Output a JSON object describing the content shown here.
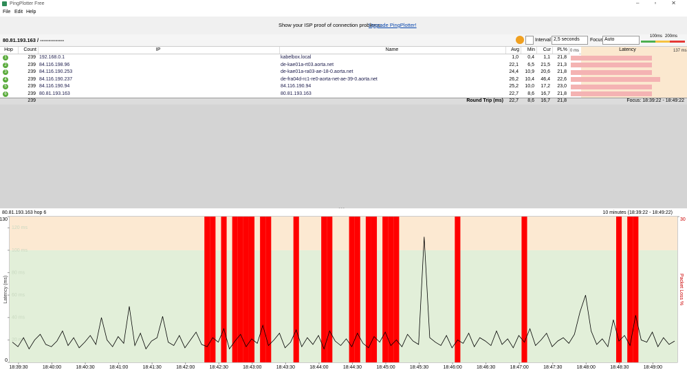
{
  "window": {
    "title": "PingPlotter Free"
  },
  "menu": [
    "File",
    "Edit",
    "Help"
  ],
  "banner": {
    "text": "Show your ISP proof of connection problems.",
    "link": "Upgrade PingPlotter!"
  },
  "toolbar": {
    "target": "80.81.193.163 / --------------",
    "interval_label": "Interval",
    "interval": "2,5 seconds",
    "focus_label": "Focus",
    "focus": "Auto",
    "scale": [
      "100ms",
      "200ms"
    ]
  },
  "table": {
    "columns": [
      "Hop",
      "Count",
      "IP",
      "Name",
      "Avg",
      "Min",
      "Cur",
      "PL%",
      "Latency"
    ],
    "latency_scale": [
      "0 ms",
      "137 ms"
    ],
    "rows": [
      [
        "1",
        "239",
        "192.168.0.1",
        "kabelbox.local",
        "1,0",
        "0,4",
        "1,1",
        "21,8"
      ],
      [
        "2",
        "239",
        "84.116.198.96",
        "de-kae01a-rt03.aorta.net",
        "22,1",
        "6,5",
        "21,5",
        "21,3"
      ],
      [
        "3",
        "239",
        "84.116.190.253",
        "de-kae01a-ra03-ae-18-0.aorta.net",
        "24,4",
        "10,9",
        "20,6",
        "21,8"
      ],
      [
        "4",
        "239",
        "84.116.190.237",
        "de-fra04d-rc1-re0-aorta-net-ae-39-0.aorta.net",
        "26,2",
        "10,4",
        "46,4",
        "22,6"
      ],
      [
        "5",
        "239",
        "84.116.190.94",
        "84.116.190.94",
        "25,2",
        "10,0",
        "17,2",
        "23,0"
      ],
      [
        "6",
        "239",
        "80.81.193.163",
        "80.81.193.163",
        "22,7",
        "8,6",
        "16,7",
        "21,8"
      ]
    ],
    "summary": {
      "count": "239",
      "label": "Round Trip (ms)",
      "avg": "22,7",
      "min": "8,6",
      "cur": "16,7",
      "pl": "21,8",
      "focus": "Focus: 18:39:22 - 18:49:22"
    }
  },
  "chart_data": {
    "type": "line",
    "title": "80.81.193.163 hop 6",
    "subtitle": "10 minutes (18:39:22 - 18:49:22)",
    "y_label": "Latency (ms)",
    "y2_label": "Packet Loss %",
    "xlim": [
      "18:39:22",
      "18:49:22"
    ],
    "xticks": [
      "18:39:30",
      "18:40:00",
      "18:40:30",
      "18:41:00",
      "18:41:30",
      "18:42:00",
      "18:42:30",
      "18:43:00",
      "18:43:30",
      "18:44:00",
      "18:44:30",
      "18:45:00",
      "18:45:30",
      "18:46:00",
      "18:46:30",
      "18:47:00",
      "18:47:30",
      "18:48:00",
      "18:48:30",
      "18:49:00"
    ],
    "ylim": [
      0,
      130
    ],
    "yticks": [
      0,
      {
        "value": 20,
        "label": "20 ms"
      },
      {
        "value": 40,
        "label": "40 ms"
      },
      {
        "value": 60,
        "label": "60 ms"
      },
      {
        "value": 80,
        "label": "80 ms"
      },
      {
        "value": 100,
        "label": "100 ms"
      },
      {
        "value": 120,
        "label": "120 ms"
      },
      130
    ],
    "y2lim": [
      0,
      30
    ],
    "y2ticks": [
      30
    ],
    "zones": [
      {
        "from": 0,
        "to": 100,
        "color": "#e2efd9"
      },
      {
        "from": 100,
        "to": 200,
        "color": "#fce9d2"
      }
    ],
    "series": [
      {
        "color": "#000000",
        "values": [
          18,
          14,
          22,
          12,
          20,
          25,
          16,
          14,
          19,
          28,
          15,
          22,
          13,
          18,
          24,
          16,
          40,
          20,
          14,
          23,
          17,
          50,
          15,
          26,
          12,
          19,
          22,
          41,
          18,
          15,
          24,
          13,
          20,
          27,
          16,
          14,
          22,
          18,
          30,
          12,
          19,
          25,
          14,
          21,
          17,
          33,
          15,
          20,
          26,
          13,
          18,
          29,
          14,
          22,
          16,
          24,
          12,
          28,
          19,
          15,
          21,
          14,
          26,
          17,
          13,
          23,
          18,
          27,
          15,
          20,
          14,
          25,
          19,
          16,
          112,
          22,
          18,
          15,
          24,
          13,
          20,
          17,
          26,
          14,
          22,
          19,
          15,
          28,
          16,
          21,
          13,
          24,
          18,
          30,
          15,
          20,
          26,
          14,
          19,
          22,
          17,
          25,
          45,
          60,
          28,
          16,
          21,
          14,
          38,
          19,
          24,
          15,
          42,
          20,
          18,
          27,
          14,
          22,
          16,
          19
        ]
      },
      {
        "color": "#ff0000",
        "axis": "y2",
        "values": [
          0,
          0,
          0,
          0,
          0,
          0,
          0,
          0,
          0,
          0,
          0,
          0,
          0,
          0,
          0,
          0,
          0,
          0,
          0,
          0,
          0,
          0,
          0,
          0,
          0,
          0,
          0,
          0,
          0,
          0,
          0,
          0,
          0,
          0,
          0,
          30,
          30,
          0,
          30,
          0,
          30,
          30,
          30,
          30,
          0,
          30,
          30,
          0,
          0,
          0,
          0,
          30,
          0,
          0,
          0,
          0,
          30,
          30,
          0,
          0,
          0,
          30,
          30,
          0,
          30,
          30,
          0,
          30,
          30,
          30,
          0,
          0,
          0,
          0,
          0,
          0,
          0,
          0,
          0,
          0,
          30,
          0,
          0,
          0,
          0,
          0,
          0,
          0,
          0,
          0,
          0,
          0,
          30,
          0,
          0,
          0,
          0,
          0,
          0,
          0,
          0,
          0,
          0,
          0,
          0,
          0,
          0,
          0,
          0,
          30,
          0,
          30,
          30,
          0,
          0,
          0,
          0,
          0,
          0,
          0
        ]
      }
    ]
  }
}
